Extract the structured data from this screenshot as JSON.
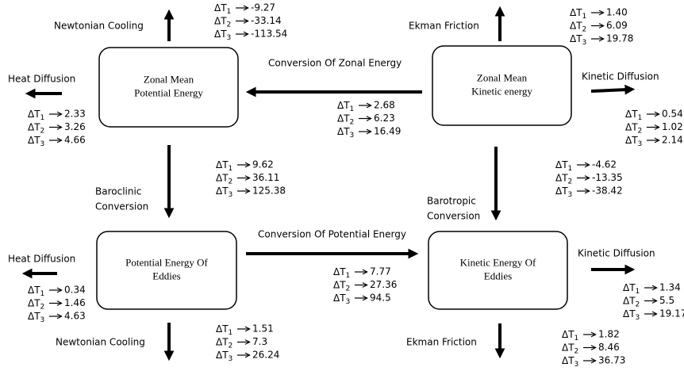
{
  "row_symbol": "ΔT",
  "row_indices": [
    "1",
    "2",
    "3"
  ],
  "nodes": [
    {
      "lines": [
        "Zonal Mean",
        "Potential Energy"
      ]
    },
    {
      "lines": [
        "Zonal Mean",
        "Kinetic energy"
      ]
    },
    {
      "lines": [
        "Potential Energy Of",
        "Eddies"
      ]
    },
    {
      "lines": [
        "Kinetic Energy Of",
        "Eddies"
      ]
    }
  ],
  "flows": [
    {
      "label": [
        "Newtonian Cooling"
      ],
      "values": [
        "-9.27",
        "-33.14",
        "-113.54"
      ]
    },
    {
      "label": [
        "Heat Diffusion"
      ],
      "values": [
        "2.33",
        "3.26",
        "4.66"
      ]
    },
    {
      "label": [
        "Conversion Of Zonal Energy"
      ],
      "values": [
        "2.68",
        "6.23",
        "16.49"
      ]
    },
    {
      "label": [
        "Ekman Friction"
      ],
      "values": [
        "1.40",
        "6.09",
        "19.78"
      ]
    },
    {
      "label": [
        "Kinetic Diffusion"
      ],
      "values": [
        "0.54",
        "1.02",
        "2.14"
      ]
    },
    {
      "label": [
        "Baroclinic",
        "Conversion"
      ],
      "values": [
        "9.62",
        "36.11",
        "125.38"
      ]
    },
    {
      "label": [
        "Barotropic",
        "Conversion"
      ],
      "values": [
        "-4.62",
        "-13.35",
        "-38.42"
      ]
    },
    {
      "label": [
        "Heat Diffusion"
      ],
      "values": [
        "0.34",
        "1.46",
        "4.63"
      ]
    },
    {
      "label": [
        "Conversion Of Potential Energy"
      ],
      "values": [
        "7.77",
        "27.36",
        "94.5"
      ]
    },
    {
      "label": [
        "Kinetic Diffusion"
      ],
      "values": [
        "1.34",
        "5.5",
        "19.17"
      ]
    },
    {
      "label": [
        "Newtonian Cooling"
      ],
      "values": [
        "1.51",
        "7.3",
        "26.24"
      ]
    },
    {
      "label": [
        "Ekman Friction"
      ],
      "values": [
        "1.82",
        "8.46",
        "36.73"
      ]
    }
  ]
}
